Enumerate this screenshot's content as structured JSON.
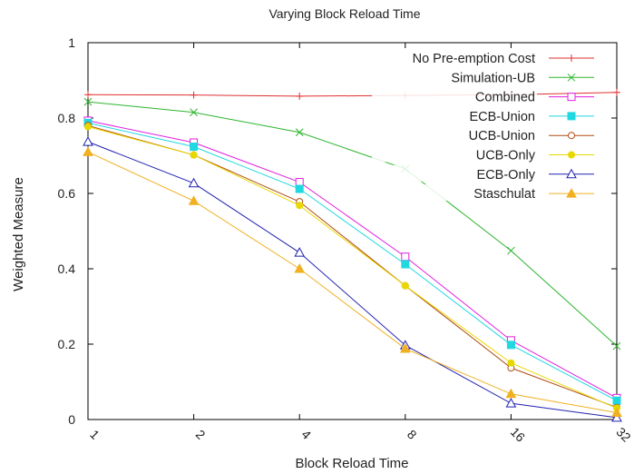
{
  "chart_data": {
    "type": "line",
    "title": "Varying Block Reload Time",
    "xlabel": "Block Reload Time",
    "ylabel": "Weighted Measure",
    "x": [
      "1",
      "2",
      "4",
      "8",
      "16",
      "32"
    ],
    "ylim": [
      0,
      1
    ],
    "yticks": [
      "0",
      "0.2",
      "0.4",
      "0.6",
      "0.8",
      "1"
    ],
    "grid": false,
    "legend_position": "top-right",
    "series": [
      {
        "name": "No Pre-emption Cost",
        "color": "#e03030",
        "marker": "plus",
        "values": [
          0.862,
          0.861,
          0.858,
          0.86,
          0.862,
          0.868
        ]
      },
      {
        "name": "Simulation-UB",
        "color": "#2db52d",
        "marker": "cross",
        "values": [
          0.843,
          0.815,
          0.762,
          0.665,
          0.448,
          0.195
        ]
      },
      {
        "name": "Combined",
        "color": "#e020e0",
        "marker": "square-open",
        "values": [
          0.793,
          0.735,
          0.63,
          0.432,
          0.21,
          0.057
        ]
      },
      {
        "name": "ECB-Union",
        "color": "#20d8e0",
        "marker": "square-filled",
        "values": [
          0.787,
          0.724,
          0.612,
          0.412,
          0.198,
          0.05
        ]
      },
      {
        "name": "UCB-Union",
        "color": "#b04a10",
        "marker": "circle-open",
        "values": [
          0.78,
          0.702,
          0.578,
          0.355,
          0.137,
          0.032
        ]
      },
      {
        "name": "UCB-Only",
        "color": "#e8d800",
        "marker": "circle-filled",
        "values": [
          0.777,
          0.702,
          0.568,
          0.355,
          0.15,
          0.03
        ]
      },
      {
        "name": "ECB-Only",
        "color": "#2020b0",
        "marker": "triangle-open",
        "values": [
          0.737,
          0.627,
          0.443,
          0.197,
          0.043,
          0.005
        ]
      },
      {
        "name": "Staschulat",
        "color": "#f0b020",
        "marker": "triangle-filled",
        "values": [
          0.71,
          0.58,
          0.4,
          0.188,
          0.068,
          0.018
        ]
      }
    ]
  }
}
